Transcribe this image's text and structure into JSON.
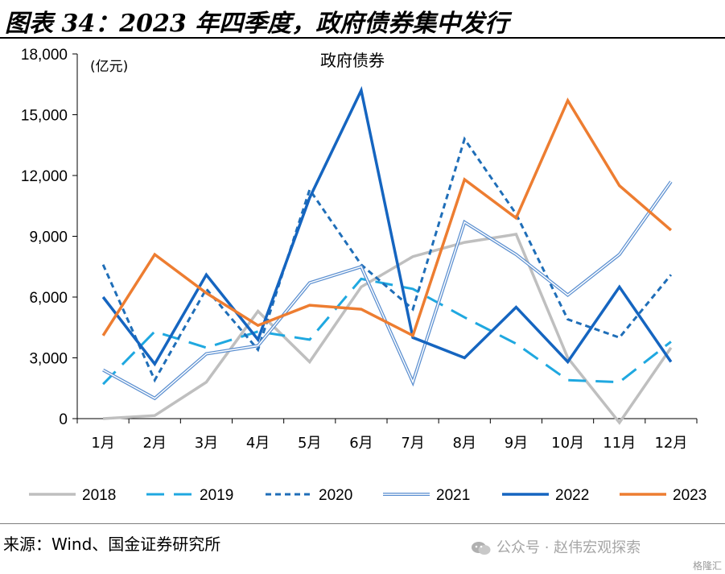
{
  "figure": {
    "title": "图表 34：2023 年四季度，政府债券集中发行",
    "source": "来源：Wind、国金证券研究所",
    "watermark": "公众号 · 赵伟宏观探索",
    "corner_mark": "格隆汇"
  },
  "chart_data": {
    "type": "line",
    "title": "政府债券",
    "unit_label": "(亿元)",
    "categories": [
      "1月",
      "2月",
      "3月",
      "4月",
      "5月",
      "6月",
      "7月",
      "8月",
      "9月",
      "10月",
      "11月",
      "12月"
    ],
    "ylim": [
      0,
      18000
    ],
    "yticks": [
      0,
      3000,
      6000,
      9000,
      12000,
      15000,
      18000
    ],
    "ytick_labels": [
      "0",
      "3,000",
      "6,000",
      "9,000",
      "12,000",
      "15,000",
      "18,000"
    ],
    "grid": false,
    "legend_position": "bottom",
    "series": [
      {
        "name": "2018",
        "color": "#bfbfbf",
        "style": "solid",
        "values": [
          0,
          150,
          1800,
          5300,
          2800,
          6500,
          8000,
          8700,
          9100,
          3000,
          -200,
          3500
        ]
      },
      {
        "name": "2019",
        "color": "#1fa8e0",
        "style": "dash",
        "values": [
          1700,
          4300,
          3500,
          4300,
          3900,
          6900,
          6400,
          5000,
          3700,
          1900,
          1800,
          3800
        ]
      },
      {
        "name": "2020",
        "color": "#1f6eb8",
        "style": "dot",
        "values": [
          7600,
          1900,
          6400,
          3400,
          11300,
          7600,
          5400,
          13800,
          10100,
          4900,
          4000,
          7100
        ]
      },
      {
        "name": "2021",
        "color": "#5b8fd0",
        "style": "double",
        "values": [
          2400,
          1000,
          3200,
          3600,
          6700,
          7500,
          1800,
          9700,
          8100,
          6100,
          8100,
          11700
        ]
      },
      {
        "name": "2022",
        "color": "#1565c0",
        "style": "solid",
        "values": [
          6000,
          2700,
          7100,
          3900,
          10900,
          16200,
          4000,
          3000,
          5500,
          2800,
          6500,
          2800
        ]
      },
      {
        "name": "2023",
        "color": "#ed7d31",
        "style": "solid",
        "values": [
          4100,
          8100,
          6200,
          4600,
          5600,
          5400,
          4100,
          11800,
          9900,
          15700,
          11500,
          9300
        ]
      }
    ]
  }
}
